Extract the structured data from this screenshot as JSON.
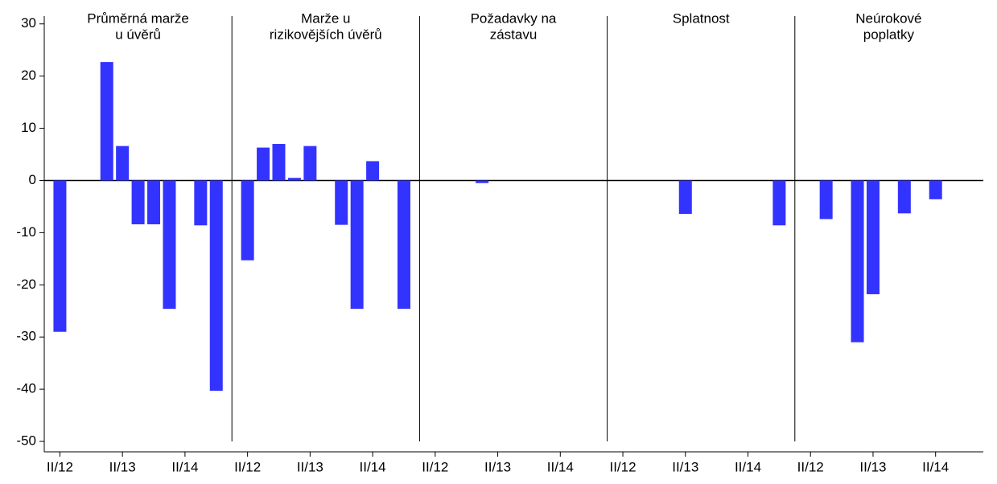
{
  "chart_data": {
    "type": "bar",
    "color": "#3333ff",
    "categories": [
      "II/12",
      null,
      null,
      null,
      "II/13",
      null,
      null,
      null,
      "II/14",
      null,
      null
    ],
    "panels": [
      {
        "title": [
          "Průměrná marže",
          "u úvěrů"
        ],
        "values": [
          -29,
          null,
          null,
          22.7,
          6.6,
          -8.4,
          -8.4,
          -24.6,
          null,
          -8.6,
          -40.3
        ]
      },
      {
        "title": [
          "Marže u",
          "rizikovějších úvěrů"
        ],
        "values": [
          -15.3,
          6.3,
          7.0,
          0.5,
          6.6,
          null,
          -8.5,
          -24.6,
          3.7,
          null,
          -24.6
        ]
      },
      {
        "title": [
          "Požadavky na",
          "zástavu"
        ],
        "values": [
          null,
          null,
          null,
          -0.5,
          null,
          null,
          null,
          null,
          null,
          null,
          null
        ]
      },
      {
        "title": [
          "Splatnost"
        ],
        "values": [
          null,
          null,
          null,
          null,
          -6.4,
          null,
          null,
          null,
          null,
          null,
          -8.6
        ]
      },
      {
        "title": [
          "Neúrokové",
          "poplatky"
        ],
        "values": [
          null,
          -7.4,
          null,
          -31,
          -21.8,
          null,
          -6.3,
          null,
          -3.6,
          null,
          null
        ]
      }
    ],
    "ylim": [
      -52,
      31.5
    ],
    "yticks": [
      30,
      20,
      10,
      0,
      -10,
      -20,
      -30,
      -40,
      -50
    ]
  }
}
